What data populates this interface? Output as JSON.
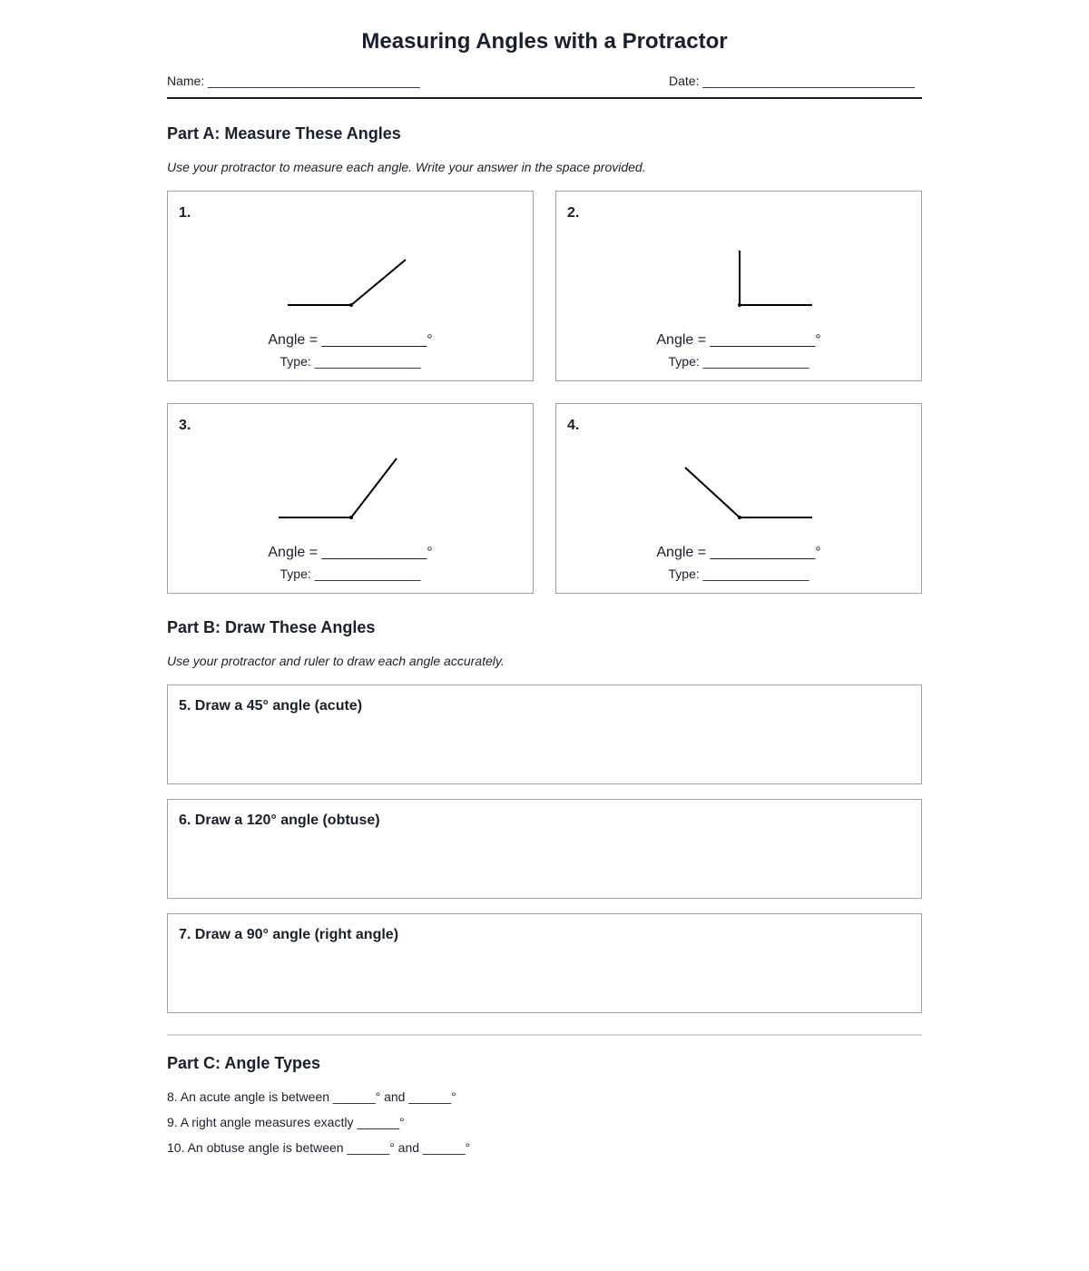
{
  "title": "Measuring Angles with a Protractor",
  "header": {
    "name_label": "Name: ______________________________",
    "date_label": "Date: ______________________________"
  },
  "part_a": {
    "heading": "Part A: Measure These Angles",
    "instructions": "Use your protractor to measure each angle. Write your answer in the space provided.",
    "angle_label": "Angle = _____________°",
    "type_label": "Type: _______________",
    "problems": [
      {
        "number": "1."
      },
      {
        "number": "2."
      },
      {
        "number": "3."
      },
      {
        "number": "4."
      }
    ]
  },
  "part_b": {
    "heading": "Part B: Draw These Angles",
    "instructions": "Use your protractor and ruler to draw each angle accurately.",
    "problems": [
      {
        "label": "5. Draw a 45° angle (acute)"
      },
      {
        "label": "6. Draw a 120° angle (obtuse)"
      },
      {
        "label": "7. Draw a 90° angle (right angle)"
      }
    ]
  },
  "part_c": {
    "heading": "Part C: Angle Types",
    "questions": [
      "8. An acute angle is between ______° and ______°",
      "9. A right angle measures exactly ______°",
      "10. An obtuse angle is between ______° and ______°"
    ]
  }
}
